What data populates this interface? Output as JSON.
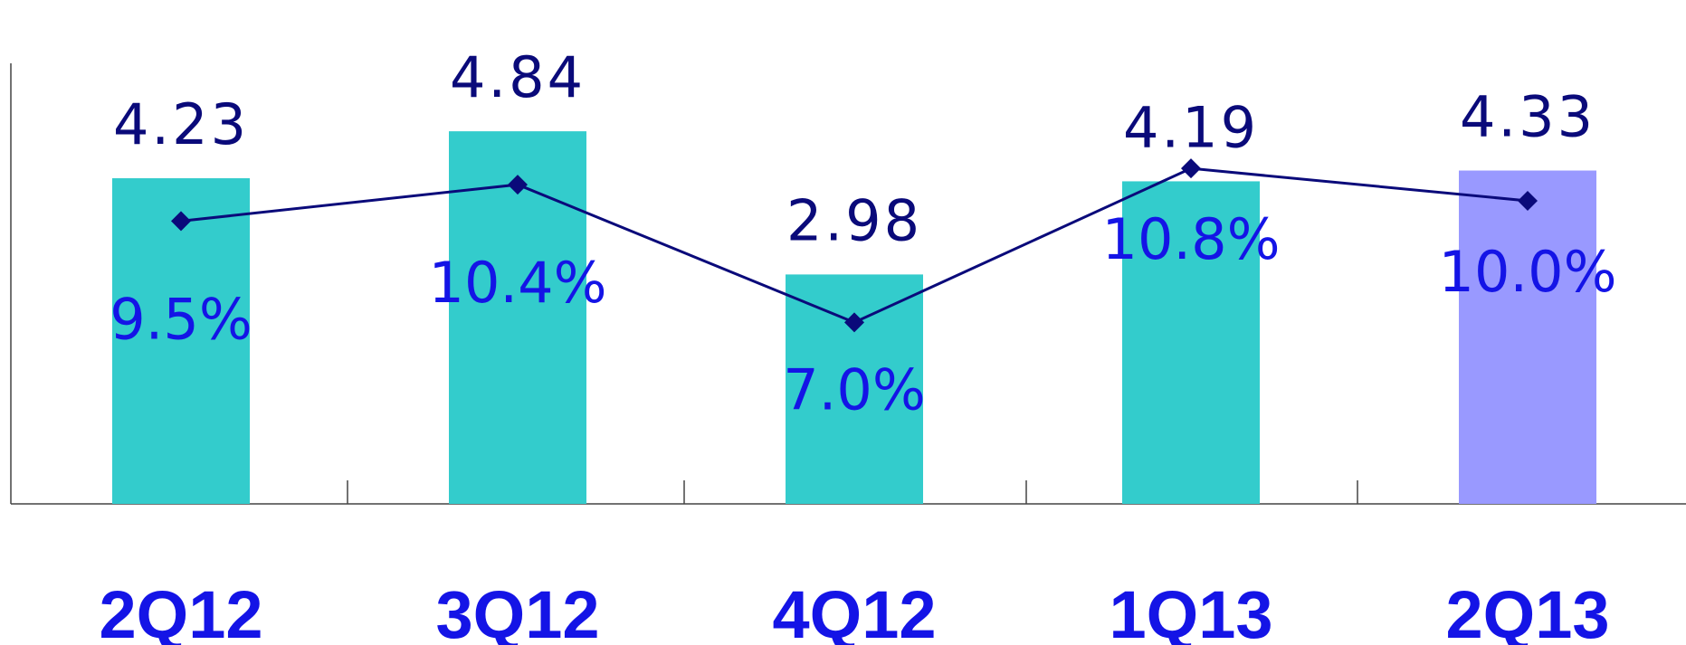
{
  "chart_data": {
    "type": "bar",
    "categories": [
      "2Q12",
      "3Q12",
      "4Q12",
      "1Q13",
      "2Q13"
    ],
    "series": [
      {
        "type": "bar",
        "values": [
          4.23,
          4.84,
          2.98,
          4.19,
          4.33
        ],
        "labels": [
          "4.23",
          "4.84",
          "2.98",
          "4.19",
          "4.33"
        ]
      },
      {
        "type": "line",
        "values": [
          9.5,
          10.4,
          7.0,
          10.8,
          10.0
        ],
        "labels": [
          "9.5%",
          "10.4%",
          "7.0%",
          "10.8%",
          "10.0%"
        ]
      }
    ],
    "colors": {
      "bar": "#33cccc",
      "bar_highlight": "#9999ff",
      "line": "#0a0a7a",
      "bar_value_text": "#0a0a7a",
      "pct_text": "#1414e6",
      "category_text": "#1414e6"
    },
    "highlight_index": 4,
    "xlabel": "",
    "ylabel": "",
    "ylim": [
      0,
      5
    ],
    "line_ylim": [
      0,
      20
    ],
    "grid": false,
    "legend": "none"
  }
}
